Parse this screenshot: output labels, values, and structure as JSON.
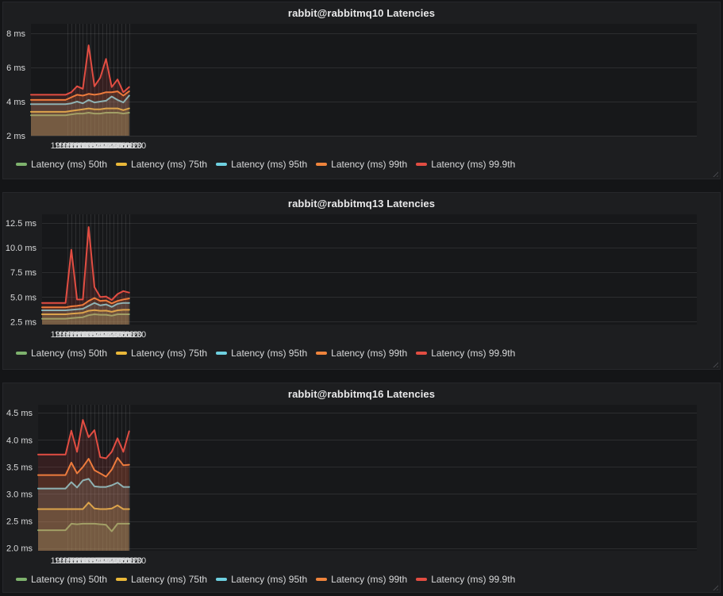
{
  "page": {
    "background": "#141517",
    "panel_background": "#1d1e20",
    "text_color": "#d8d9da"
  },
  "chart_data": [
    {
      "type": "area",
      "title": "rabbit@rabbitmq10 Latencies",
      "xlabel": "",
      "ylabel": "",
      "y_unit": "ms",
      "grid": true,
      "legend_position": "bottom",
      "ylim": [
        2.0,
        8.56
      ],
      "y_ticks": [
        {
          "v": 8,
          "label": "8 ms"
        },
        {
          "v": 6,
          "label": "6 ms"
        },
        {
          "v": 4,
          "label": "4 ms"
        },
        {
          "v": 2,
          "label": "2 ms"
        }
      ],
      "x": [
        "19:05:45",
        "19:06:00",
        "19:06:15",
        "19:06:30",
        "19:06:45",
        "19:07:00",
        "19:07:15",
        "19:07:30",
        "19:07:45",
        "19:08:00",
        "19:08:15",
        "19:08:30"
      ],
      "x_tick_labels": [
        "19:05:50",
        "19:06:00",
        "19:06:10",
        "19:06:20",
        "19:06:30",
        "19:06:40",
        "19:06:50",
        "19:07:00",
        "19:07:10",
        "19:07:20",
        "19:07:30",
        "19:07:40",
        "19:07:50",
        "19:08:00",
        "19:08:10",
        "19:08:20",
        "19:08:30"
      ],
      "series": [
        {
          "name": "Latency (ms) 50th",
          "color": "#7EB26D",
          "values": [
            3.2,
            3.25,
            3.3,
            3.3,
            3.35,
            3.3,
            3.3,
            3.35,
            3.35,
            3.35,
            3.3,
            3.35
          ]
        },
        {
          "name": "Latency (ms) 75th",
          "color": "#EAB839",
          "values": [
            3.4,
            3.45,
            3.5,
            3.55,
            3.6,
            3.55,
            3.55,
            3.6,
            3.6,
            3.6,
            3.5,
            3.6
          ]
        },
        {
          "name": "Latency (ms) 95th",
          "color": "#6ED0E0",
          "values": [
            3.85,
            3.9,
            4.0,
            3.9,
            4.1,
            3.95,
            4.0,
            4.05,
            4.3,
            4.1,
            3.95,
            4.35
          ]
        },
        {
          "name": "Latency (ms) 99th",
          "color": "#EF843C",
          "values": [
            4.1,
            4.25,
            4.4,
            4.35,
            4.45,
            4.4,
            4.45,
            4.55,
            4.55,
            4.6,
            4.35,
            4.6
          ]
        },
        {
          "name": "Latency (ms) 99.9th",
          "color": "#E24D42",
          "values": [
            4.4,
            4.55,
            4.9,
            4.75,
            7.3,
            4.9,
            5.4,
            6.5,
            4.85,
            5.3,
            4.55,
            4.85
          ]
        }
      ]
    },
    {
      "type": "area",
      "title": "rabbit@rabbitmq13 Latencies",
      "xlabel": "",
      "ylabel": "",
      "y_unit": "ms",
      "grid": true,
      "legend_position": "bottom",
      "ylim": [
        2.2,
        13.4
      ],
      "y_ticks": [
        {
          "v": 12.5,
          "label": "12.5 ms"
        },
        {
          "v": 10.0,
          "label": "10.0 ms"
        },
        {
          "v": 7.5,
          "label": "7.5 ms"
        },
        {
          "v": 5.0,
          "label": "5.0 ms"
        },
        {
          "v": 2.5,
          "label": "2.5 ms"
        }
      ],
      "x": [
        "19:05:45",
        "19:06:00",
        "19:06:15",
        "19:06:30",
        "19:06:45",
        "19:07:00",
        "19:07:15",
        "19:07:30",
        "19:07:45",
        "19:08:00",
        "19:08:15",
        "19:08:30"
      ],
      "x_tick_labels": [
        "19:05:50",
        "19:06:00",
        "19:06:10",
        "19:06:20",
        "19:06:30",
        "19:06:40",
        "19:06:50",
        "19:07:00",
        "19:07:10",
        "19:07:20",
        "19:07:30",
        "19:07:40",
        "19:07:50",
        "19:08:00",
        "19:08:10",
        "19:08:20",
        "19:08:30"
      ],
      "series": [
        {
          "name": "Latency (ms) 50th",
          "color": "#7EB26D",
          "values": [
            2.8,
            2.85,
            2.9,
            2.95,
            3.15,
            3.25,
            3.2,
            3.2,
            3.1,
            3.25,
            3.25,
            3.25
          ]
        },
        {
          "name": "Latency (ms) 75th",
          "color": "#EAB839",
          "values": [
            3.25,
            3.3,
            3.35,
            3.4,
            3.6,
            3.67,
            3.6,
            3.62,
            3.5,
            3.65,
            3.7,
            3.7
          ]
        },
        {
          "name": "Latency (ms) 95th",
          "color": "#6ED0E0",
          "values": [
            3.65,
            3.7,
            3.75,
            3.8,
            4.1,
            4.4,
            4.15,
            4.25,
            4.0,
            4.3,
            4.4,
            4.4
          ]
        },
        {
          "name": "Latency (ms) 99th",
          "color": "#EF843C",
          "values": [
            3.95,
            4.05,
            4.1,
            4.2,
            4.6,
            4.9,
            4.6,
            4.65,
            4.35,
            4.6,
            4.75,
            4.85
          ]
        },
        {
          "name": "Latency (ms) 99.9th",
          "color": "#E24D42",
          "values": [
            4.4,
            9.8,
            4.75,
            4.75,
            12.1,
            6.0,
            5.0,
            5.05,
            4.7,
            5.3,
            5.6,
            5.45
          ]
        }
      ]
    },
    {
      "type": "area",
      "title": "rabbit@rabbitmq16 Latencies",
      "xlabel": "",
      "ylabel": "",
      "y_unit": "ms",
      "grid": true,
      "legend_position": "bottom",
      "ylim": [
        1.95,
        4.65
      ],
      "y_ticks": [
        {
          "v": 4.5,
          "label": "4.5 ms"
        },
        {
          "v": 4.0,
          "label": "4.0 ms"
        },
        {
          "v": 3.5,
          "label": "3.5 ms"
        },
        {
          "v": 3.0,
          "label": "3.0 ms"
        },
        {
          "v": 2.5,
          "label": "2.5 ms"
        },
        {
          "v": 2.0,
          "label": "2.0 ms"
        }
      ],
      "x": [
        "19:05:45",
        "19:06:00",
        "19:06:15",
        "19:06:30",
        "19:06:45",
        "19:07:00",
        "19:07:15",
        "19:07:30",
        "19:07:45",
        "19:08:00",
        "19:08:15",
        "19:08:30"
      ],
      "x_tick_labels": [
        "19:05:50",
        "19:06:00",
        "19:06:10",
        "19:06:20",
        "19:06:30",
        "19:06:40",
        "19:06:50",
        "19:07:00",
        "19:07:10",
        "19:07:20",
        "19:07:30",
        "19:07:40",
        "19:07:50",
        "19:08:00",
        "19:08:10",
        "19:08:20",
        "19:08:30"
      ],
      "series": [
        {
          "name": "Latency (ms) 50th",
          "color": "#7EB26D",
          "values": [
            2.33,
            2.45,
            2.44,
            2.45,
            2.45,
            2.45,
            2.44,
            2.43,
            2.31,
            2.45,
            2.45,
            2.45
          ]
        },
        {
          "name": "Latency (ms) 75th",
          "color": "#EAB839",
          "values": [
            2.72,
            2.72,
            2.72,
            2.72,
            2.84,
            2.73,
            2.72,
            2.72,
            2.73,
            2.79,
            2.72,
            2.72
          ]
        },
        {
          "name": "Latency (ms) 95th",
          "color": "#6ED0E0",
          "values": [
            3.1,
            3.22,
            3.12,
            3.25,
            3.28,
            3.14,
            3.13,
            3.13,
            3.16,
            3.21,
            3.13,
            3.13
          ]
        },
        {
          "name": "Latency (ms) 99th",
          "color": "#EF843C",
          "values": [
            3.35,
            3.58,
            3.38,
            3.5,
            3.65,
            3.44,
            3.38,
            3.32,
            3.45,
            3.67,
            3.53,
            3.54
          ]
        },
        {
          "name": "Latency (ms) 99.9th",
          "color": "#E24D42",
          "values": [
            3.73,
            4.17,
            3.78,
            4.37,
            4.05,
            4.18,
            3.68,
            3.66,
            3.78,
            4.03,
            3.78,
            4.16
          ]
        }
      ]
    }
  ]
}
